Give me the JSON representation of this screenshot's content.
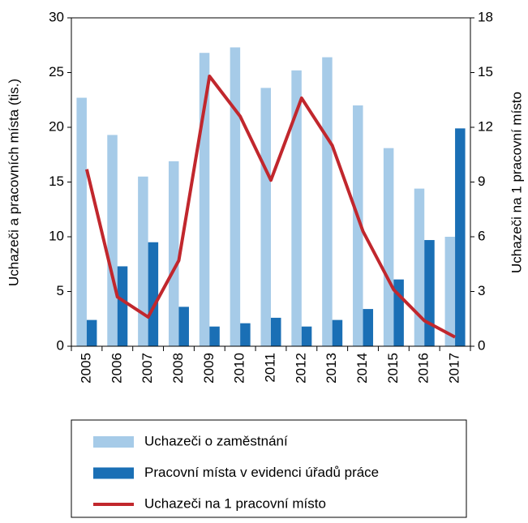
{
  "chart_data": {
    "type": "bar_line",
    "categories": [
      "2005",
      "2006",
      "2007",
      "2008",
      "2009",
      "2010",
      "2011",
      "2012",
      "2013",
      "2014",
      "2015",
      "2016",
      "2017"
    ],
    "series": [
      {
        "name": "Uchazeči o zaměstnání",
        "color": "#a6cbe8",
        "type": "bar",
        "values": [
          22.7,
          19.3,
          15.5,
          16.9,
          26.8,
          27.3,
          23.6,
          25.2,
          26.4,
          22.0,
          18.1,
          14.4,
          10.0
        ]
      },
      {
        "name": "Pracovní místa v evidenci úřadů práce",
        "color": "#1a6fb5",
        "type": "bar",
        "values": [
          2.4,
          7.3,
          9.5,
          3.6,
          1.8,
          2.1,
          2.6,
          1.8,
          2.4,
          3.4,
          6.1,
          9.7,
          19.9
        ]
      },
      {
        "name": "Uchazeči na 1 pracovní místo",
        "color": "#c1272d",
        "type": "line",
        "axis": "y2",
        "values": [
          9.7,
          2.7,
          1.6,
          4.7,
          14.8,
          12.6,
          9.1,
          13.6,
          11.0,
          6.3,
          3.1,
          1.4,
          0.5
        ]
      }
    ],
    "y_label": "Uchazeči a pracovních místa (tis.)",
    "y2_label": "Uchazeči na 1 pracovní místo",
    "ylim": [
      0,
      30
    ],
    "yticks": [
      0,
      5,
      10,
      15,
      20,
      25,
      30
    ],
    "y2lim": [
      0,
      18
    ],
    "y2ticks": [
      0,
      3,
      6,
      9,
      12,
      15,
      18
    ],
    "legend": "bottom"
  }
}
